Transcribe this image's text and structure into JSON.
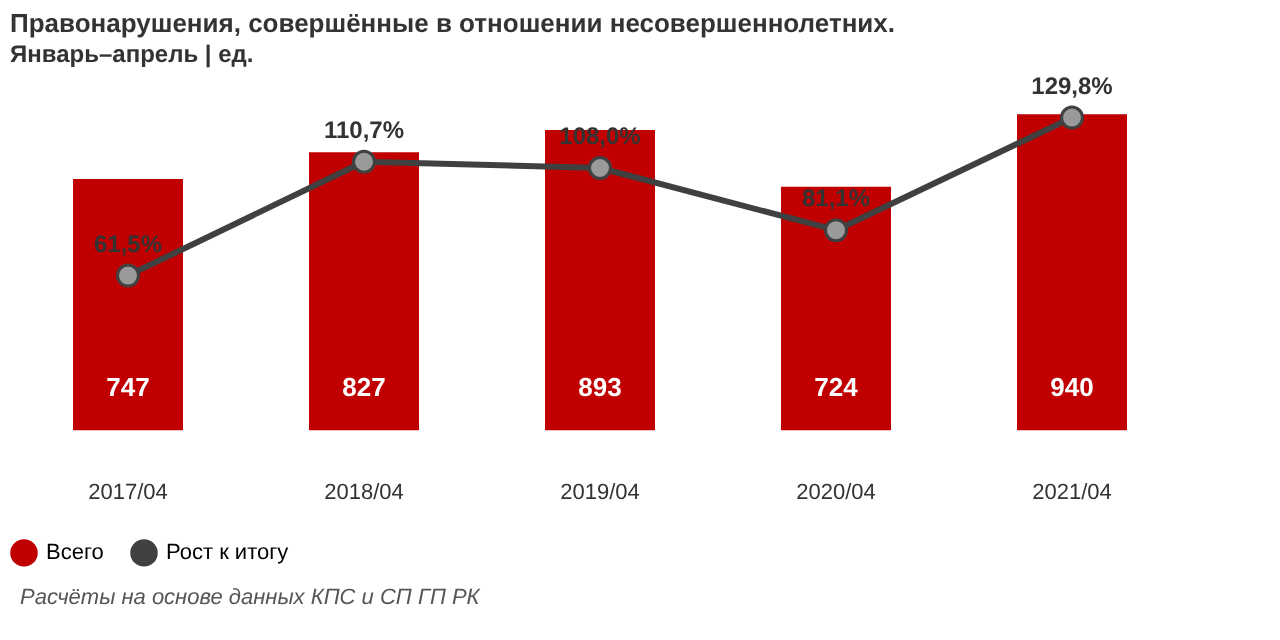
{
  "chart_data": {
    "type": "bar",
    "title": "Правонарушения, совершённые в отношении несовершеннолетних.",
    "subtitle": "Январь–апрель | ед.",
    "categories": [
      "2017/04",
      "2018/04",
      "2019/04",
      "2020/04",
      "2021/04"
    ],
    "series": [
      {
        "name": "Всего",
        "color": "#c00000",
        "values": [
          747,
          827,
          893,
          724,
          940
        ],
        "value_labels": [
          "747",
          "827",
          "893",
          "724",
          "940"
        ]
      },
      {
        "name": "Рост к итогу",
        "type": "line",
        "axis": "y2",
        "color": "#404040",
        "values": [
          61.5,
          110.7,
          108.0,
          81.1,
          129.8
        ],
        "value_labels": [
          "61,5%",
          "110,7%",
          "108,0%",
          "81,1%",
          "129,8%"
        ]
      }
    ],
    "marker": "circle",
    "line_style": "solid",
    "legend": "bottom",
    "annotations": [
      "Расчёты на основе данных КПС и СП ГП РК"
    ]
  }
}
